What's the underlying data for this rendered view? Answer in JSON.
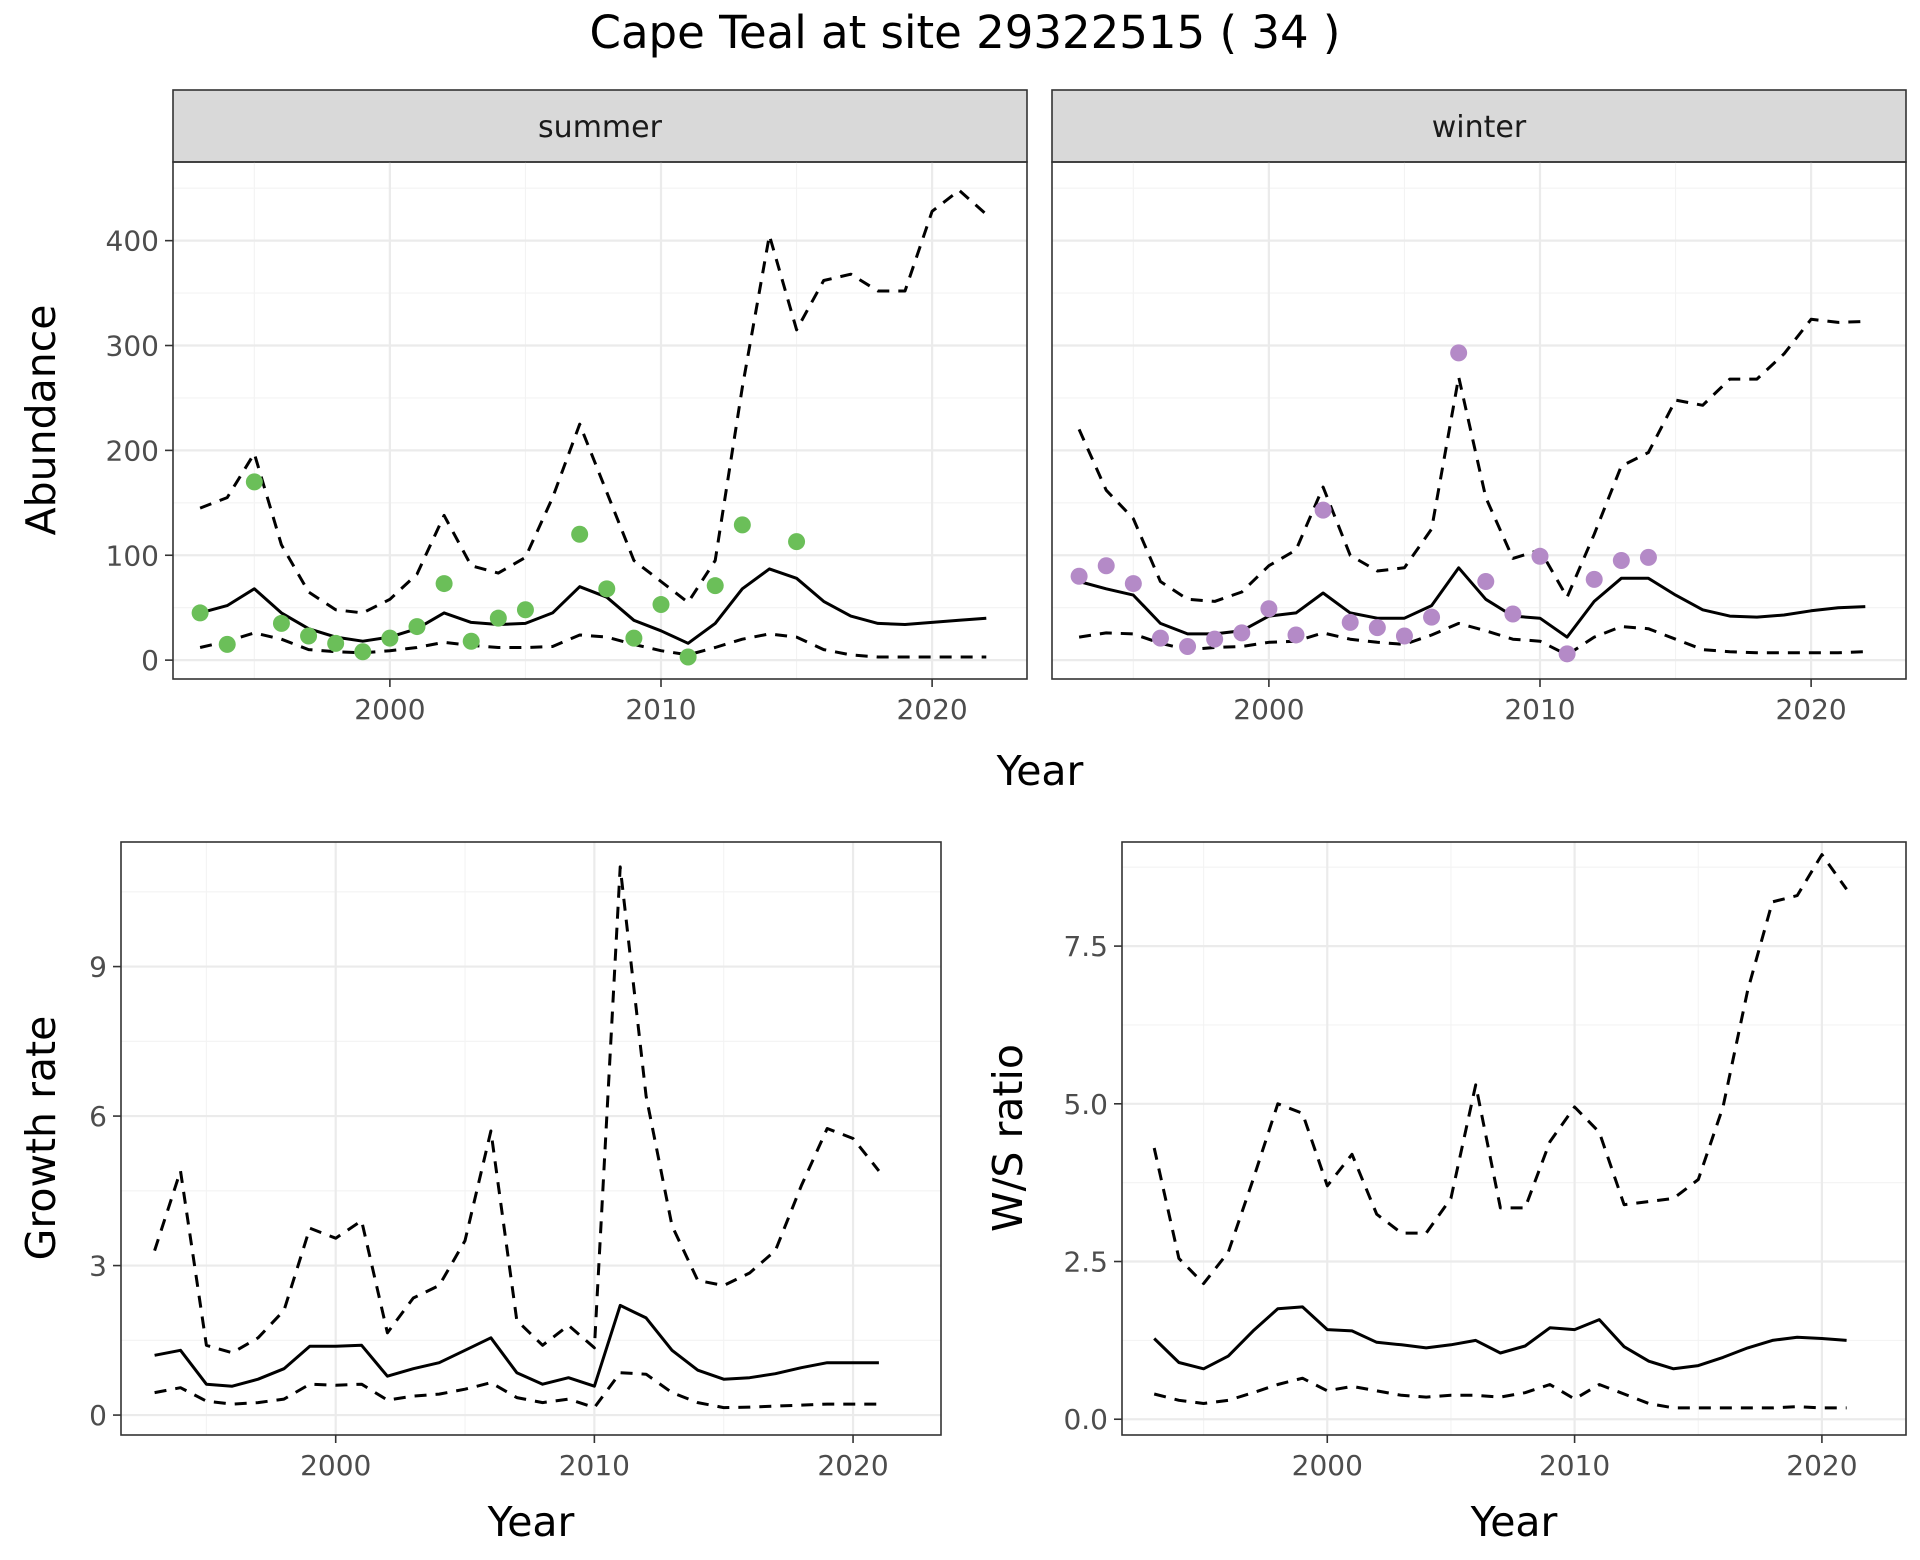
{
  "figure": {
    "title": "Cape Teal at site 29322515 ( 34 )"
  },
  "colors": {
    "summer_points": "#6bbf59",
    "winter_points": "#b48ac7",
    "lines": "#000000"
  },
  "chart_data": [
    {
      "id": "abundance_summer",
      "type": "line",
      "facet": "summer",
      "xlabel": "Year",
      "ylabel": "Abundance",
      "xlim": [
        1992,
        2023.5
      ],
      "ylim": [
        -18,
        475
      ],
      "xticks": [
        2000,
        2010,
        2020
      ],
      "yticks": [
        0,
        100,
        200,
        300,
        400
      ],
      "x": [
        1993,
        1994,
        1995,
        1996,
        1997,
        1998,
        1999,
        2000,
        2001,
        2002,
        2003,
        2004,
        2005,
        2006,
        2007,
        2008,
        2009,
        2010,
        2011,
        2012,
        2013,
        2014,
        2015,
        2016,
        2017,
        2018,
        2019,
        2020,
        2021,
        2022
      ],
      "series": [
        {
          "name": "estimate",
          "style": "solid",
          "values": [
            45,
            52,
            68,
            45,
            30,
            22,
            18,
            22,
            30,
            45,
            36,
            34,
            35,
            45,
            70,
            60,
            38,
            28,
            16,
            35,
            68,
            87,
            78,
            56,
            42,
            35,
            34,
            36,
            38,
            40
          ]
        },
        {
          "name": "upper",
          "style": "dashed",
          "values": [
            145,
            155,
            197,
            110,
            65,
            48,
            45,
            58,
            82,
            138,
            90,
            83,
            98,
            155,
            225,
            160,
            95,
            75,
            55,
            95,
            260,
            405,
            315,
            362,
            368,
            352,
            352,
            428,
            448,
            425
          ]
        },
        {
          "name": "lower",
          "style": "dashed",
          "values": [
            12,
            18,
            26,
            20,
            10,
            8,
            7,
            9,
            12,
            17,
            14,
            12,
            12,
            13,
            24,
            22,
            15,
            9,
            5,
            12,
            20,
            25,
            22,
            10,
            5,
            3,
            3,
            3,
            3,
            3
          ]
        }
      ],
      "points": {
        "name": "observed counts",
        "x": [
          1993,
          1994,
          1995,
          1996,
          1997,
          1998,
          1999,
          2000,
          2001,
          2002,
          2003,
          2004,
          2005,
          2007,
          2008,
          2009,
          2010,
          2011,
          2012,
          2013,
          2015
        ],
        "y": [
          45,
          15,
          170,
          35,
          23,
          16,
          8,
          21,
          32,
          73,
          18,
          40,
          48,
          120,
          68,
          21,
          53,
          3,
          71,
          129,
          113
        ]
      }
    },
    {
      "id": "abundance_winter",
      "type": "line",
      "facet": "winter",
      "xlabel": "Year",
      "ylabel": "Abundance",
      "xlim": [
        1992,
        2023.5
      ],
      "ylim": [
        -18,
        475
      ],
      "xticks": [
        2000,
        2010,
        2020
      ],
      "yticks": [
        0,
        100,
        200,
        300,
        400
      ],
      "x": [
        1993,
        1994,
        1995,
        1996,
        1997,
        1998,
        1999,
        2000,
        2001,
        2002,
        2003,
        2004,
        2005,
        2006,
        2007,
        2008,
        2009,
        2010,
        2011,
        2012,
        2013,
        2014,
        2015,
        2016,
        2017,
        2018,
        2019,
        2020,
        2021,
        2022
      ],
      "series": [
        {
          "name": "estimate",
          "style": "solid",
          "values": [
            75,
            68,
            62,
            35,
            25,
            25,
            28,
            42,
            45,
            64,
            45,
            40,
            40,
            52,
            88,
            58,
            42,
            40,
            22,
            56,
            78,
            78,
            62,
            48,
            42,
            41,
            43,
            47,
            50,
            51
          ]
        },
        {
          "name": "upper",
          "style": "dashed",
          "values": [
            220,
            162,
            135,
            75,
            58,
            56,
            65,
            90,
            105,
            165,
            100,
            85,
            88,
            125,
            270,
            155,
            97,
            105,
            60,
            120,
            185,
            198,
            248,
            243,
            268,
            268,
            292,
            325,
            322,
            323
          ]
        },
        {
          "name": "lower",
          "style": "dashed",
          "values": [
            22,
            26,
            25,
            16,
            10,
            12,
            13,
            17,
            18,
            26,
            20,
            17,
            15,
            24,
            35,
            28,
            20,
            18,
            5,
            22,
            32,
            30,
            20,
            10,
            8,
            7,
            7,
            7,
            7,
            8
          ]
        }
      ],
      "points": {
        "name": "observed counts",
        "x": [
          1993,
          1994,
          1995,
          1996,
          1997,
          1998,
          1999,
          2000,
          2001,
          2002,
          2003,
          2004,
          2005,
          2006,
          2007,
          2008,
          2009,
          2010,
          2011,
          2012,
          2013,
          2014
        ],
        "y": [
          80,
          90,
          73,
          21,
          13,
          20,
          26,
          49,
          24,
          143,
          36,
          31,
          23,
          41,
          293,
          75,
          44,
          99,
          6,
          77,
          95,
          98
        ]
      }
    },
    {
      "id": "growth_rate",
      "type": "line",
      "xlabel": "Year",
      "ylabel": "Growth rate",
      "xlim": [
        1991.7,
        2023.4
      ],
      "ylim": [
        -0.4,
        11.5
      ],
      "xticks": [
        2000,
        2010,
        2020
      ],
      "yticks": [
        0,
        3,
        6,
        9
      ],
      "x": [
        1993,
        1994,
        1995,
        1996,
        1997,
        1998,
        1999,
        2000,
        2001,
        2002,
        2003,
        2004,
        2005,
        2006,
        2007,
        2008,
        2009,
        2010,
        2011,
        2012,
        2013,
        2014,
        2015,
        2016,
        2017,
        2018,
        2019,
        2020,
        2021
      ],
      "series": [
        {
          "name": "estimate",
          "style": "solid",
          "values": [
            1.2,
            1.3,
            0.62,
            0.58,
            0.72,
            0.93,
            1.38,
            1.38,
            1.4,
            0.78,
            0.93,
            1.05,
            1.3,
            1.55,
            0.85,
            0.62,
            0.75,
            0.58,
            2.2,
            1.95,
            1.3,
            0.9,
            0.72,
            0.75,
            0.83,
            0.95,
            1.05,
            1.05,
            1.05
          ]
        },
        {
          "name": "upper",
          "style": "dashed",
          "values": [
            3.3,
            4.9,
            1.4,
            1.25,
            1.55,
            2.1,
            3.75,
            3.55,
            3.9,
            1.65,
            2.35,
            2.6,
            3.5,
            5.7,
            1.9,
            1.4,
            1.8,
            1.35,
            11.0,
            6.4,
            3.8,
            2.7,
            2.6,
            2.85,
            3.3,
            4.6,
            5.75,
            5.55,
            4.9
          ]
        },
        {
          "name": "lower",
          "style": "dashed",
          "values": [
            0.45,
            0.55,
            0.28,
            0.22,
            0.25,
            0.32,
            0.62,
            0.6,
            0.62,
            0.3,
            0.38,
            0.42,
            0.52,
            0.65,
            0.35,
            0.25,
            0.32,
            0.15,
            0.85,
            0.82,
            0.45,
            0.25,
            0.15,
            0.16,
            0.18,
            0.2,
            0.22,
            0.22,
            0.22
          ]
        }
      ]
    },
    {
      "id": "ws_ratio",
      "type": "line",
      "xlabel": "Year",
      "ylabel": "W/S ratio",
      "xlim": [
        1991.7,
        2023.4
      ],
      "ylim": [
        -0.25,
        9.15
      ],
      "xticks": [
        2000,
        2010,
        2020
      ],
      "yticks": [
        0.0,
        2.5,
        5.0,
        7.5
      ],
      "ytick_labels": [
        "0.0",
        "2.5",
        "5.0",
        "7.5"
      ],
      "x": [
        1993,
        1994,
        1995,
        1996,
        1997,
        1998,
        1999,
        2000,
        2001,
        2002,
        2003,
        2004,
        2005,
        2006,
        2007,
        2008,
        2009,
        2010,
        2011,
        2012,
        2013,
        2014,
        2015,
        2016,
        2017,
        2018,
        2019,
        2020,
        2021
      ],
      "series": [
        {
          "name": "estimate",
          "style": "solid",
          "values": [
            1.28,
            0.9,
            0.8,
            1.0,
            1.4,
            1.75,
            1.78,
            1.42,
            1.4,
            1.22,
            1.18,
            1.13,
            1.18,
            1.25,
            1.05,
            1.16,
            1.45,
            1.42,
            1.58,
            1.15,
            0.92,
            0.8,
            0.85,
            0.98,
            1.13,
            1.25,
            1.3,
            1.28,
            1.25
          ]
        },
        {
          "name": "upper",
          "style": "dashed",
          "values": [
            4.3,
            2.55,
            2.15,
            2.65,
            3.8,
            5.0,
            4.85,
            3.7,
            4.2,
            3.25,
            2.95,
            2.95,
            3.5,
            5.3,
            3.35,
            3.35,
            4.4,
            4.95,
            4.55,
            3.4,
            3.45,
            3.5,
            3.8,
            4.95,
            6.8,
            8.2,
            8.3,
            8.95,
            8.4
          ]
        },
        {
          "name": "lower",
          "style": "dashed",
          "values": [
            0.4,
            0.3,
            0.25,
            0.3,
            0.42,
            0.55,
            0.65,
            0.45,
            0.52,
            0.45,
            0.38,
            0.35,
            0.38,
            0.38,
            0.35,
            0.42,
            0.55,
            0.32,
            0.55,
            0.4,
            0.25,
            0.18,
            0.18,
            0.18,
            0.18,
            0.18,
            0.2,
            0.18,
            0.18
          ]
        }
      ]
    }
  ]
}
